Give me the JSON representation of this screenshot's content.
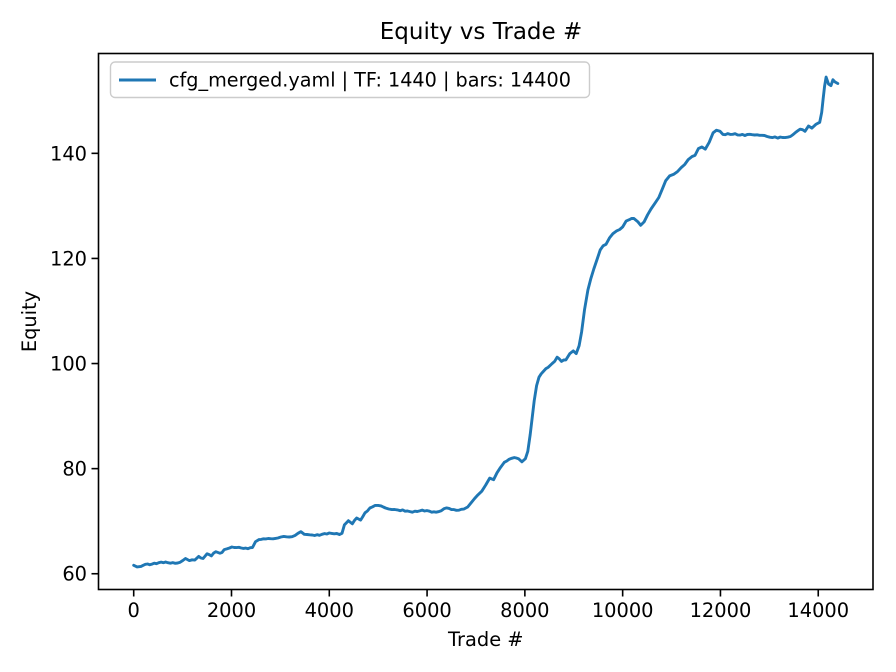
{
  "figure": {
    "background": "#ffffff"
  },
  "chart_data": {
    "type": "line",
    "title": "Equity vs Trade #",
    "xlabel": "Trade #",
    "ylabel": "Equity",
    "line_color": "#1f77b4",
    "axis_color": "#000000",
    "legend": {
      "position": "upper left",
      "border_color": "#cccccc",
      "entries": [
        {
          "label": "cfg_merged.yaml | TF: 1440 | bars: 14400",
          "color": "#1f77b4"
        }
      ]
    },
    "grid": false,
    "xlim": [
      -720,
      15120
    ],
    "ylim": [
      57,
      159
    ],
    "x_ticks": [
      0,
      2000,
      4000,
      6000,
      8000,
      10000,
      12000,
      14000
    ],
    "y_ticks": [
      60,
      80,
      100,
      120,
      140
    ],
    "series": [
      {
        "name": "cfg_merged.yaml | TF: 1440 | bars: 14400",
        "points": [
          [
            0,
            61.6
          ],
          [
            70,
            61.3
          ],
          [
            150,
            61.4
          ],
          [
            240,
            61.8
          ],
          [
            420,
            62.0
          ],
          [
            700,
            62.1
          ],
          [
            950,
            62.2
          ],
          [
            1060,
            62.9
          ],
          [
            1140,
            62.5
          ],
          [
            1250,
            62.6
          ],
          [
            1330,
            63.3
          ],
          [
            1420,
            62.9
          ],
          [
            1500,
            63.8
          ],
          [
            1590,
            63.4
          ],
          [
            1680,
            64.2
          ],
          [
            1760,
            63.9
          ],
          [
            1850,
            64.6
          ],
          [
            1960,
            64.9
          ],
          [
            2200,
            64.9
          ],
          [
            2430,
            65.0
          ],
          [
            2490,
            66.1
          ],
          [
            2560,
            66.5
          ],
          [
            2750,
            66.7
          ],
          [
            2950,
            66.8
          ],
          [
            3070,
            67.1
          ],
          [
            3180,
            67.0
          ],
          [
            3300,
            67.3
          ],
          [
            3420,
            68.0
          ],
          [
            3490,
            67.5
          ],
          [
            3600,
            67.4
          ],
          [
            3850,
            67.5
          ],
          [
            4100,
            67.6
          ],
          [
            4260,
            67.7
          ],
          [
            4310,
            69.3
          ],
          [
            4390,
            70.1
          ],
          [
            4470,
            69.5
          ],
          [
            4560,
            70.6
          ],
          [
            4640,
            70.2
          ],
          [
            4730,
            71.6
          ],
          [
            4830,
            72.5
          ],
          [
            4940,
            73.0
          ],
          [
            5060,
            72.9
          ],
          [
            5150,
            72.5
          ],
          [
            5280,
            72.2
          ],
          [
            5450,
            72.0
          ],
          [
            5750,
            71.9
          ],
          [
            6050,
            71.9
          ],
          [
            6230,
            71.8
          ],
          [
            6290,
            72.0
          ],
          [
            6350,
            72.4
          ],
          [
            6550,
            72.2
          ],
          [
            6750,
            72.3
          ],
          [
            6830,
            72.7
          ],
          [
            6900,
            73.5
          ],
          [
            6970,
            74.3
          ],
          [
            7040,
            75.0
          ],
          [
            7120,
            75.7
          ],
          [
            7200,
            76.9
          ],
          [
            7280,
            78.2
          ],
          [
            7360,
            77.9
          ],
          [
            7430,
            79.2
          ],
          [
            7500,
            80.2
          ],
          [
            7580,
            81.2
          ],
          [
            7680,
            81.8
          ],
          [
            7780,
            82.1
          ],
          [
            7870,
            81.9
          ],
          [
            7940,
            81.3
          ],
          [
            8010,
            81.9
          ],
          [
            8060,
            83.3
          ],
          [
            8110,
            86.5
          ],
          [
            8150,
            89.7
          ],
          [
            8190,
            92.9
          ],
          [
            8240,
            95.8
          ],
          [
            8290,
            97.4
          ],
          [
            8380,
            98.5
          ],
          [
            8480,
            99.3
          ],
          [
            8560,
            100.0
          ],
          [
            8660,
            101.2
          ],
          [
            8750,
            100.4
          ],
          [
            8840,
            100.7
          ],
          [
            8920,
            101.9
          ],
          [
            8990,
            102.4
          ],
          [
            9050,
            101.9
          ],
          [
            9110,
            103.4
          ],
          [
            9160,
            106.0
          ],
          [
            9220,
            110.2
          ],
          [
            9290,
            114.0
          ],
          [
            9350,
            116.2
          ],
          [
            9410,
            118.0
          ],
          [
            9480,
            119.9
          ],
          [
            9540,
            121.6
          ],
          [
            9600,
            122.4
          ],
          [
            9660,
            122.7
          ],
          [
            9730,
            123.9
          ],
          [
            9800,
            124.7
          ],
          [
            9870,
            125.2
          ],
          [
            9940,
            125.5
          ],
          [
            10000,
            126.0
          ],
          [
            10070,
            127.1
          ],
          [
            10140,
            127.4
          ],
          [
            10230,
            127.6
          ],
          [
            10310,
            127.0
          ],
          [
            10370,
            126.3
          ],
          [
            10440,
            127.0
          ],
          [
            10510,
            128.3
          ],
          [
            10580,
            129.4
          ],
          [
            10660,
            130.5
          ],
          [
            10740,
            131.6
          ],
          [
            10810,
            133.2
          ],
          [
            10880,
            134.8
          ],
          [
            10960,
            135.7
          ],
          [
            11040,
            136.0
          ],
          [
            11120,
            136.5
          ],
          [
            11200,
            137.3
          ],
          [
            11270,
            137.9
          ],
          [
            11340,
            138.8
          ],
          [
            11420,
            139.4
          ],
          [
            11480,
            139.6
          ],
          [
            11550,
            140.9
          ],
          [
            11620,
            141.2
          ],
          [
            11690,
            140.8
          ],
          [
            11770,
            142.1
          ],
          [
            11850,
            143.9
          ],
          [
            11920,
            144.4
          ],
          [
            11990,
            144.2
          ],
          [
            12050,
            143.6
          ],
          [
            12200,
            143.6
          ],
          [
            12450,
            143.6
          ],
          [
            12700,
            143.5
          ],
          [
            12900,
            143.4
          ],
          [
            13060,
            143.0
          ],
          [
            13170,
            142.9
          ],
          [
            13320,
            143.0
          ],
          [
            13430,
            143.2
          ],
          [
            13540,
            144.0
          ],
          [
            13630,
            144.6
          ],
          [
            13730,
            144.2
          ],
          [
            13800,
            145.2
          ],
          [
            13870,
            144.8
          ],
          [
            13950,
            145.5
          ],
          [
            14030,
            145.9
          ],
          [
            14070,
            147.8
          ],
          [
            14100,
            150.3
          ],
          [
            14130,
            152.8
          ],
          [
            14160,
            154.5
          ],
          [
            14210,
            153.2
          ],
          [
            14260,
            152.9
          ],
          [
            14300,
            154.0
          ],
          [
            14340,
            153.6
          ],
          [
            14400,
            153.3
          ]
        ]
      }
    ]
  }
}
